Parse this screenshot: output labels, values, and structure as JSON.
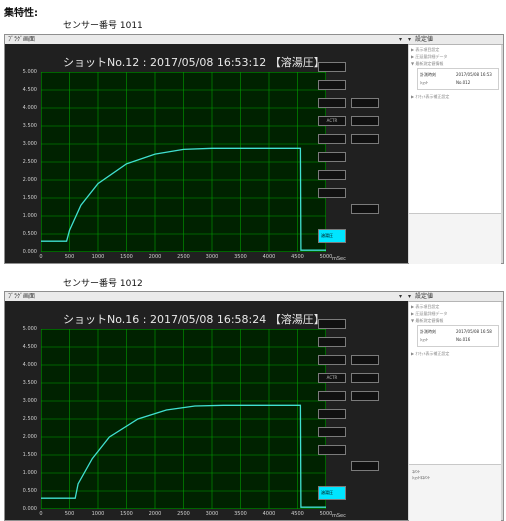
{
  "heading": "集特性:",
  "shots": [
    {
      "sensor_label": "センサー番号 1011",
      "window_title": "ﾌﾞﾗｸﾞ画面",
      "side_title": "設定値",
      "chart_title": "ショットNo.12 : 2017/05/08 16:53:12 【溶湯圧】",
      "side_menu": [
        "▶ 表示項目設定",
        "▶ 圧延量詳細データ",
        "▼ 最新測定値情報"
      ],
      "info_rows": [
        {
          "label": "計測時刻",
          "value": "2017/05/08 16:53"
        },
        {
          "label": "ｼｮｯﾄ",
          "value": "No.012"
        }
      ],
      "info_footer": "▶ ｵﾌｾｯﾄ表示補正設定",
      "bottom_lines": [],
      "right_column_labels": [
        "",
        "",
        "",
        "",
        "ACTR",
        "",
        "",
        "",
        "",
        "",
        "",
        ""
      ],
      "cyan_button": "溶湯圧",
      "chart_data": {
        "type": "line",
        "y_ticks": [
          "5.000",
          "4.500",
          "4.000",
          "3.500",
          "3.000",
          "2.500",
          "2.000",
          "1.500",
          "1.000",
          "0.500",
          "0.000"
        ],
        "x_ticks": [
          "0",
          "500",
          "1000",
          "1500",
          "2000",
          "2500",
          "3000",
          "3500",
          "4000",
          "4500",
          "5000"
        ],
        "xlabel": "mSec",
        "ylim": [
          0,
          5
        ],
        "xlim": [
          0,
          5000
        ],
        "series": [
          {
            "color": "#40e0d0",
            "x": [
              0,
              450,
              500,
              700,
              1000,
              1500,
              2000,
              2500,
              3000,
              3500,
              4000,
              4500,
              4550,
              4560,
              5000
            ],
            "y": [
              0.3,
              0.3,
              0.6,
              1.3,
              1.9,
              2.45,
              2.72,
              2.85,
              2.88,
              2.88,
              2.88,
              2.88,
              2.88,
              0.05,
              0.05
            ]
          }
        ]
      }
    },
    {
      "sensor_label": "センサー番号 1012",
      "window_title": "ﾌﾞﾗｸﾞ画面",
      "side_title": "設定値",
      "chart_title": "ショットNo.16 : 2017/05/08 16:58:24 【溶湯圧】",
      "side_menu": [
        "▶ 表示項目設定",
        "▶ 圧延量詳細データ",
        "▼ 最新測定値情報"
      ],
      "info_rows": [
        {
          "label": "計測時刻",
          "value": "2017/05/08 16:58"
        },
        {
          "label": "ｼｮｯﾄ",
          "value": "No.016"
        }
      ],
      "info_footer": "▶ ｵﾌｾｯﾄ表示補正設定",
      "bottom_lines": [
        "ｺﾒﾝﾄ",
        "ｼｮｯﾄﾖｺﾒﾝﾄ"
      ],
      "right_column_labels": [
        "",
        "",
        "",
        "",
        "ACTR",
        "",
        "",
        "",
        "",
        "",
        "",
        ""
      ],
      "cyan_button": "溶湯圧",
      "chart_data": {
        "type": "line",
        "y_ticks": [
          "5.000",
          "4.500",
          "4.000",
          "3.500",
          "3.000",
          "2.500",
          "2.000",
          "1.500",
          "1.000",
          "0.500",
          "0.000"
        ],
        "x_ticks": [
          "0",
          "500",
          "1000",
          "1500",
          "2000",
          "2500",
          "3000",
          "3500",
          "4000",
          "4500",
          "5000"
        ],
        "xlabel": "mSec",
        "ylim": [
          0,
          5
        ],
        "xlim": [
          0,
          5000
        ],
        "series": [
          {
            "color": "#40e0d0",
            "x": [
              0,
              600,
              650,
              900,
              1200,
              1700,
              2200,
              2700,
              3200,
              3700,
              4200,
              4550,
              4560,
              5000
            ],
            "y": [
              0.3,
              0.3,
              0.7,
              1.4,
              2.0,
              2.5,
              2.75,
              2.86,
              2.88,
              2.88,
              2.88,
              2.88,
              0.05,
              0.05
            ]
          }
        ]
      }
    }
  ]
}
